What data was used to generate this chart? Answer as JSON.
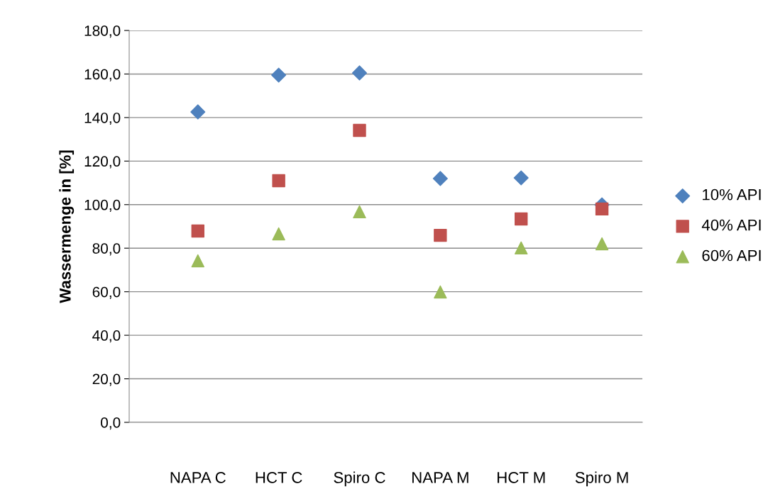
{
  "chart_data": {
    "type": "scatter",
    "ylabel": "Wassermenge in [%]",
    "categories": [
      "NAPA C",
      "HCT C",
      "Spiro C",
      "NAPA M",
      "HCT M",
      "Spiro M"
    ],
    "series": [
      {
        "name": "10% API",
        "color": "#4f81bd",
        "marker": "diamond",
        "values": [
          142.6,
          159.5,
          160.5,
          112.0,
          112.3,
          99.9
        ]
      },
      {
        "name": "40% API",
        "color": "#c0504d",
        "marker": "square",
        "values": [
          87.9,
          111.0,
          134.1,
          85.9,
          93.4,
          98.0
        ]
      },
      {
        "name": "60% API",
        "color": "#9bbb59",
        "marker": "triangle",
        "values": [
          74.2,
          86.6,
          96.7,
          59.9,
          80.1,
          82.0
        ]
      }
    ],
    "ylim": [
      0,
      180
    ],
    "yticks": [
      {
        "value": 0,
        "label": "0,0"
      },
      {
        "value": 20,
        "label": "20,0"
      },
      {
        "value": 40,
        "label": "40,0"
      },
      {
        "value": 60,
        "label": "60,0"
      },
      {
        "value": 80,
        "label": "80,0"
      },
      {
        "value": 100,
        "label": "100,0"
      },
      {
        "value": 120,
        "label": "120,0"
      },
      {
        "value": 140,
        "label": "140,0"
      },
      {
        "value": 160,
        "label": "160,0"
      },
      {
        "value": 180,
        "label": "180,0"
      }
    ],
    "grid": "y",
    "legend": "right"
  }
}
